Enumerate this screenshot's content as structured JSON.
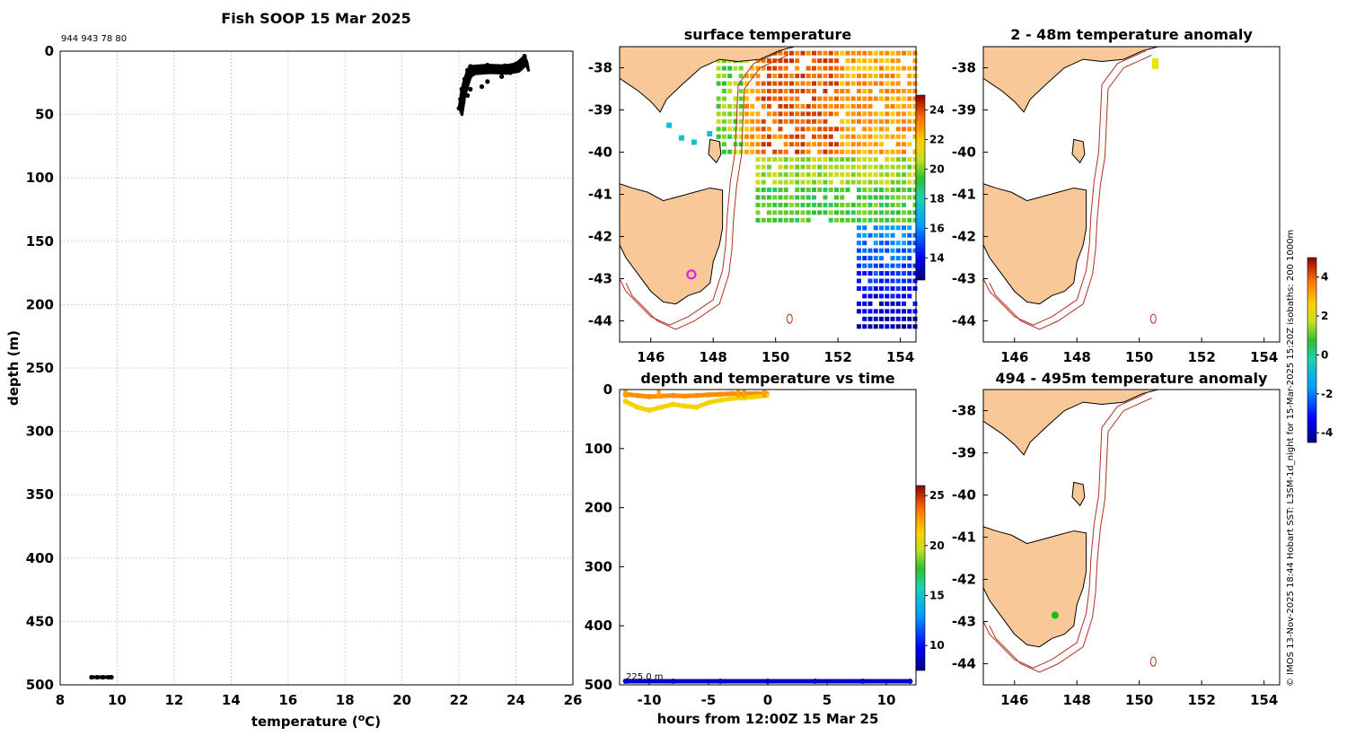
{
  "colors": {
    "land": "#f8c898",
    "coast": "#000000",
    "isobath": "#b03020",
    "profile": "#000000",
    "marker": "#e020e0",
    "marker2": "#10c010"
  },
  "icons": [
    "colorbar-icon"
  ],
  "main_title": "Fish SOOP 15 Mar 2025",
  "profile_ids": "944 943 78 80",
  "chart_data": [
    {
      "id": "profile",
      "type": "scatter",
      "title": "Fish SOOP 15 Mar 2025",
      "xlabel": "temperature (",
      "xlabel_unit_sup": "o",
      "xlabel_unit": "C)",
      "ylabel": "depth (m)",
      "xlim": [
        8,
        26
      ],
      "ylim": [
        500,
        0
      ],
      "xticks": [
        8,
        10,
        12,
        14,
        16,
        18,
        20,
        22,
        24,
        26
      ],
      "yticks": [
        0,
        50,
        100,
        150,
        200,
        250,
        300,
        350,
        400,
        450,
        500
      ],
      "xtick_labels": [
        "8",
        "10",
        "12",
        "14",
        "16",
        "18",
        "20",
        "22",
        "24",
        "26"
      ],
      "ytick_labels": [
        "0",
        "50",
        "100",
        "150",
        "200",
        "250",
        "300",
        "350",
        "400",
        "450",
        "500"
      ],
      "series": [
        {
          "name": "shallow profiles",
          "points": [
            [
              22.0,
              45
            ],
            [
              22.05,
              38
            ],
            [
              22.1,
              30
            ],
            [
              22.2,
              22
            ],
            [
              22.3,
              15
            ],
            [
              22.4,
              12
            ],
            [
              23.0,
              11
            ],
            [
              23.6,
              11.5
            ],
            [
              24.0,
              10
            ],
            [
              24.3,
              4
            ],
            [
              24.35,
              10
            ],
            [
              23.2,
              14
            ],
            [
              22.5,
              18
            ],
            [
              22.2,
              25
            ],
            [
              22.4,
              30
            ],
            [
              22.8,
              28
            ],
            [
              23.5,
              20
            ],
            [
              24.1,
              12
            ],
            [
              22.15,
              40
            ],
            [
              22.3,
              35
            ],
            [
              23.0,
              24
            ],
            [
              23.8,
              17
            ]
          ]
        },
        {
          "name": "deep bottom",
          "points": [
            [
              9.1,
              494
            ],
            [
              9.3,
              494
            ],
            [
              9.5,
              494
            ],
            [
              9.7,
              494
            ],
            [
              9.8,
              494
            ]
          ]
        }
      ]
    },
    {
      "id": "sst",
      "type": "heatmap",
      "title": "surface temperature",
      "xlim": [
        145,
        154.5
      ],
      "ylim": [
        -44.5,
        -37.5
      ],
      "xticks": [
        146,
        148,
        150,
        152,
        154
      ],
      "yticks": [
        -38,
        -39,
        -40,
        -41,
        -42,
        -43,
        -44
      ],
      "xtick_labels": [
        "146",
        "148",
        "150",
        "152",
        "154"
      ],
      "ytick_labels": [
        "-38",
        "-39",
        "-40",
        "-41",
        "-42",
        "-43",
        "-44"
      ],
      "colorbar": {
        "min": 12.5,
        "max": 25,
        "ticks": [
          14,
          16,
          18,
          20,
          22,
          24
        ],
        "labels": [
          "14",
          "16",
          "18",
          "20",
          "22",
          "24"
        ]
      },
      "marker": {
        "lon": 147.3,
        "lat": -42.9
      }
    },
    {
      "id": "anom_shallow",
      "type": "heatmap",
      "title": "2 - 48m temperature anomaly",
      "xlim": [
        145,
        154.5
      ],
      "ylim": [
        -44.5,
        -37.5
      ],
      "xticks": [
        146,
        148,
        150,
        152,
        154
      ],
      "yticks": [
        -38,
        -39,
        -40,
        -41,
        -42,
        -43,
        -44
      ],
      "xtick_labels": [
        "146",
        "148",
        "150",
        "152",
        "154"
      ],
      "ytick_labels": [
        "-38",
        "-39",
        "-40",
        "-41",
        "-42",
        "-43",
        "-44"
      ],
      "marker": {
        "lon": 150.5,
        "lat": -37.9
      }
    },
    {
      "id": "anom_deep",
      "type": "heatmap",
      "title": "494 - 495m temperature anomaly",
      "xlim": [
        145,
        154.5
      ],
      "ylim": [
        -44.5,
        -37.5
      ],
      "xticks": [
        146,
        148,
        150,
        152,
        154
      ],
      "yticks": [
        -38,
        -39,
        -40,
        -41,
        -42,
        -43,
        -44
      ],
      "xtick_labels": [
        "146",
        "148",
        "150",
        "152",
        "154"
      ],
      "ytick_labels": [
        "-38",
        "-39",
        "-40",
        "-41",
        "-42",
        "-43",
        "-44"
      ],
      "marker": {
        "lon": 147.3,
        "lat": -42.85
      },
      "colorbar": {
        "min": -4.5,
        "max": 5,
        "ticks": [
          -4,
          -2,
          0,
          2,
          4
        ],
        "labels": [
          "-4",
          "-2",
          "0",
          "2",
          "4"
        ]
      }
    },
    {
      "id": "depth_time",
      "type": "scatter",
      "title": "depth and temperature vs time",
      "xlabel": "hours from 12:00Z 15 Mar 25",
      "xlim": [
        -12.5,
        12.5
      ],
      "ylim": [
        500,
        0
      ],
      "xticks": [
        -10,
        -5,
        0,
        5,
        10
      ],
      "yticks": [
        0,
        100,
        200,
        300,
        400,
        500
      ],
      "xtick_labels": [
        "-10",
        "-5",
        "0",
        "5",
        "10"
      ],
      "ytick_labels": [
        "0",
        "100",
        "200",
        "300",
        "400",
        "500"
      ],
      "bottom_label": "225.0 m",
      "colorbar": {
        "min": 7.5,
        "max": 26,
        "ticks": [
          10,
          15,
          20,
          25
        ],
        "labels": [
          "10",
          "15",
          "20",
          "25"
        ]
      },
      "series": [
        {
          "name": "shallow",
          "color_value": 23,
          "points": [
            [
              -12,
              8
            ],
            [
              -11,
              10
            ],
            [
              -10,
              12
            ],
            [
              -9,
              11
            ],
            [
              -8,
              10
            ],
            [
              -7,
              11
            ],
            [
              -6,
              10
            ],
            [
              -5,
              9
            ],
            [
              -4,
              8
            ],
            [
              -3,
              7
            ],
            [
              -2,
              7
            ],
            [
              -1,
              7
            ],
            [
              -0.1,
              7
            ]
          ]
        },
        {
          "name": "shallow2",
          "color_value": 21,
          "points": [
            [
              -12,
              20
            ],
            [
              -11,
              30
            ],
            [
              -10,
              35
            ],
            [
              -9,
              30
            ],
            [
              -8,
              25
            ],
            [
              -7,
              28
            ],
            [
              -6,
              30
            ],
            [
              -5,
              22
            ],
            [
              -4,
              18
            ],
            [
              -3,
              15
            ],
            [
              -2,
              14
            ],
            [
              -1,
              12
            ],
            [
              -0.1,
              10
            ]
          ]
        },
        {
          "name": "deep",
          "color_value": 9,
          "points": [
            [
              -12,
              494
            ],
            [
              -8,
              494
            ],
            [
              -4,
              494
            ],
            [
              0,
              494
            ],
            [
              4,
              494
            ],
            [
              8,
              494
            ],
            [
              12,
              494
            ]
          ]
        }
      ]
    }
  ],
  "side_note": "© IMOS 13-Nov-2025 18:44 Hobart SST: L3SM-1d_night for 15-Mar-2025 15:20Z isobaths: 200  1000m"
}
